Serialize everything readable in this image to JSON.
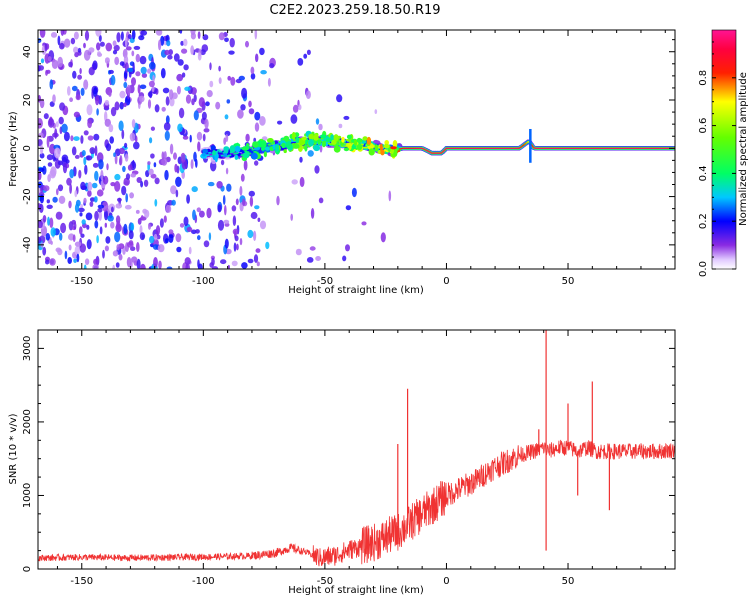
{
  "figure": {
    "title": "C2E2.2023.259.18.50.R19"
  },
  "chart_data": [
    {
      "type": "heatmap",
      "xlabel": "Height of straight line (km)",
      "ylabel": "Frequency (Hz)",
      "xlim": [
        -168,
        94
      ],
      "ylim": [
        -50,
        49
      ],
      "xticks": [
        "-150",
        "-100",
        "-50",
        "0",
        "50"
      ],
      "xtick_values": [
        -150,
        -100,
        -50,
        0,
        50
      ],
      "yticks": [
        "-40",
        "-20",
        "0",
        "20",
        "40"
      ],
      "ytick_values": [
        -40,
        -20,
        0,
        20,
        40
      ],
      "colorbar": {
        "label": "Normalized spectral amplitude",
        "range": [
          0,
          1
        ],
        "ticks": [
          "0.0",
          "0.2",
          "0.4",
          "0.6",
          "0.8"
        ],
        "tick_values": [
          0.0,
          0.2,
          0.4,
          0.6,
          0.8
        ],
        "colormap": "white-violet-blue-cyan-green-yellow-red-magenta"
      },
      "line_trace": {
        "description_values": "frequency of the spectral line vs height",
        "x": [
          -100,
          -90,
          -80,
          -70,
          -60,
          -50,
          -40,
          -30,
          -22,
          -18,
          -10,
          -6,
          -2,
          0,
          10,
          20,
          30,
          34,
          36,
          40,
          50,
          60,
          70,
          80,
          94
        ],
        "y": [
          -2,
          -2,
          -1,
          1,
          3,
          3,
          2,
          1,
          -1,
          0,
          0,
          -2,
          -2,
          0,
          0,
          0,
          0,
          3,
          0,
          0,
          0,
          0,
          0,
          0,
          0
        ],
        "amplitude": [
          0.3,
          0.35,
          0.4,
          0.5,
          0.55,
          0.55,
          0.6,
          0.65,
          0.7,
          0.9,
          0.95,
          0.95,
          0.95,
          0.95,
          0.95,
          0.95,
          0.95,
          0.7,
          0.95,
          0.95,
          0.95,
          0.95,
          0.95,
          0.95,
          0.95
        ]
      },
      "noise_region": {
        "x_range": [
          -168,
          -20
        ],
        "amplitude": [
          0.05,
          0.3
        ]
      }
    },
    {
      "type": "line",
      "xlabel": "Height of straight line (km)",
      "ylabel": "SNR (10 * v/v)",
      "xlim": [
        -168,
        94
      ],
      "ylim": [
        0,
        3250
      ],
      "xticks": [
        "-150",
        "-100",
        "-50",
        "0",
        "50"
      ],
      "xtick_values": [
        -150,
        -100,
        -50,
        0,
        50
      ],
      "yticks": [
        "0",
        "1000",
        "2000",
        "3000"
      ],
      "ytick_values": [
        0,
        1000,
        2000,
        3000
      ],
      "color": "#f03232",
      "series": [
        {
          "x": [
            -168,
            -150,
            -130,
            -110,
            -90,
            -80,
            -70,
            -64,
            -58,
            -52,
            -46,
            -40,
            -34,
            -28,
            -24,
            -20,
            -16,
            -12,
            -8,
            -4,
            0,
            6,
            12,
            18,
            24,
            30,
            36,
            40,
            42,
            46,
            50,
            54,
            58,
            62,
            66,
            70,
            76,
            82,
            88,
            94
          ],
          "values": [
            150,
            160,
            150,
            160,
            170,
            180,
            220,
            290,
            230,
            150,
            180,
            260,
            320,
            380,
            450,
            500,
            600,
            700,
            800,
            900,
            1000,
            1100,
            1200,
            1350,
            1450,
            1550,
            1600,
            1650,
            1600,
            1650,
            1650,
            1600,
            1650,
            1600,
            1600,
            1600,
            1600,
            1600,
            1600,
            1620
          ],
          "spikes": [
            {
              "x": -16,
              "y": 2450
            },
            {
              "x": -20,
              "y": 1700
            },
            {
              "x": 41,
              "y": 3250
            },
            {
              "x": 41,
              "y": 250
            },
            {
              "x": 50,
              "y": 2250
            },
            {
              "x": 60,
              "y": 2550
            },
            {
              "x": 67,
              "y": 800
            },
            {
              "x": 54,
              "y": 1000
            },
            {
              "x": 38,
              "y": 1900
            }
          ]
        }
      ]
    }
  ]
}
